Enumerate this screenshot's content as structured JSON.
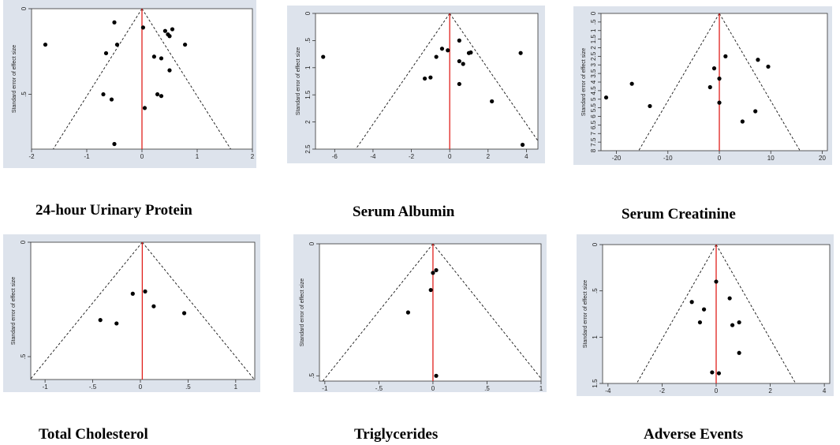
{
  "chart_data": [
    {
      "type": "scatter",
      "caption": "24-hour Urinary Protein",
      "ylabel": "Standard error of effect size",
      "xlim": [
        -2,
        2
      ],
      "ylim": [
        0,
        0.82
      ],
      "xticks": [
        -2,
        -1,
        0,
        1,
        2
      ],
      "xtick_labels": [
        "-2",
        "-1",
        "0",
        "1",
        "2"
      ],
      "yticks": [
        0,
        0.5
      ],
      "ytick_labels": [
        "0",
        ".5"
      ],
      "pooled": 0,
      "funnel_z": 1.96,
      "points": [
        {
          "x": -1.75,
          "y": 0.21
        },
        {
          "x": -0.5,
          "y": 0.08
        },
        {
          "x": -0.65,
          "y": 0.26
        },
        {
          "x": -0.45,
          "y": 0.21
        },
        {
          "x": -0.7,
          "y": 0.5
        },
        {
          "x": -0.55,
          "y": 0.53
        },
        {
          "x": -0.5,
          "y": 0.79
        },
        {
          "x": 0.02,
          "y": 0.11
        },
        {
          "x": 0.22,
          "y": 0.28
        },
        {
          "x": 0.35,
          "y": 0.29
        },
        {
          "x": 0.42,
          "y": 0.13
        },
        {
          "x": 0.47,
          "y": 0.15
        },
        {
          "x": 0.5,
          "y": 0.16
        },
        {
          "x": 0.55,
          "y": 0.12
        },
        {
          "x": 0.5,
          "y": 0.36
        },
        {
          "x": 0.78,
          "y": 0.21
        },
        {
          "x": 0.28,
          "y": 0.5
        },
        {
          "x": 0.35,
          "y": 0.51
        },
        {
          "x": 0.05,
          "y": 0.58
        }
      ]
    },
    {
      "type": "scatter",
      "caption": "Serum Albumin",
      "ylabel": "Standard error of effect size",
      "xlim": [
        -7,
        4.6
      ],
      "ylim": [
        0,
        2.5
      ],
      "xticks": [
        -6,
        -4,
        -2,
        0,
        2,
        4
      ],
      "xtick_labels": [
        "-6",
        "-4",
        "-2",
        "0",
        "2",
        "4"
      ],
      "yticks": [
        0,
        0.5,
        1,
        1.5,
        2,
        2.5
      ],
      "ytick_labels": [
        "0",
        ".5",
        "1",
        "1.5",
        "2",
        "2.5"
      ],
      "pooled": 0,
      "funnel_z": 1.96,
      "points": [
        {
          "x": -6.6,
          "y": 0.8
        },
        {
          "x": -1.3,
          "y": 1.2
        },
        {
          "x": -1.0,
          "y": 1.18
        },
        {
          "x": -0.7,
          "y": 0.8
        },
        {
          "x": -0.4,
          "y": 0.65
        },
        {
          "x": -0.1,
          "y": 0.68
        },
        {
          "x": 0.5,
          "y": 0.5
        },
        {
          "x": 0.5,
          "y": 0.88
        },
        {
          "x": 0.7,
          "y": 0.93
        },
        {
          "x": 1.0,
          "y": 0.73
        },
        {
          "x": 1.1,
          "y": 0.72
        },
        {
          "x": 0.5,
          "y": 1.3
        },
        {
          "x": 2.2,
          "y": 1.62
        },
        {
          "x": 3.7,
          "y": 0.73
        },
        {
          "x": 3.8,
          "y": 2.42
        }
      ]
    },
    {
      "type": "scatter",
      "caption": "Serum Creatinine",
      "ylabel": "Standard error of effect size",
      "xlim": [
        -23,
        21
      ],
      "ylim": [
        0,
        8.0
      ],
      "xticks": [
        -20,
        -10,
        0,
        10,
        20
      ],
      "xtick_labels": [
        "-20",
        "-10",
        "0",
        "10",
        "20"
      ],
      "yticks": [
        0,
        0.5,
        1,
        1.5,
        2,
        2.5,
        3,
        3.5,
        4,
        4.5,
        5,
        5.5,
        6,
        6.5,
        7,
        7.5,
        8
      ],
      "ytick_labels": [
        "0",
        ".5",
        "1",
        "1.5",
        "2",
        "2.5",
        "3",
        "3.5",
        "4",
        "4.5",
        "5",
        "5.5",
        "6",
        "6.5",
        "7",
        "7.5",
        "8"
      ],
      "pooled": 0,
      "funnel_z": 1.96,
      "points": [
        {
          "x": -22,
          "y": 4.9
        },
        {
          "x": -17,
          "y": 4.1
        },
        {
          "x": -13.5,
          "y": 5.4
        },
        {
          "x": -1.0,
          "y": 3.2
        },
        {
          "x": 1.2,
          "y": 2.5
        },
        {
          "x": 0,
          "y": 3.8
        },
        {
          "x": -1.8,
          "y": 4.3
        },
        {
          "x": 0,
          "y": 5.2
        },
        {
          "x": 7.5,
          "y": 2.7
        },
        {
          "x": 9.5,
          "y": 3.1
        },
        {
          "x": 7,
          "y": 5.7
        },
        {
          "x": 4.5,
          "y": 6.3
        }
      ]
    },
    {
      "type": "scatter",
      "caption": "Total Cholesterol",
      "ylabel": "Standard error of effect size",
      "xlim": [
        -1.15,
        1.2
      ],
      "ylim": [
        0,
        0.6
      ],
      "xticks": [
        -1,
        -0.5,
        0,
        0.5,
        1
      ],
      "xtick_labels": [
        "-1",
        "-.5",
        "0",
        ".5",
        "1"
      ],
      "yticks": [
        0,
        0.5
      ],
      "ytick_labels": [
        "0",
        ".5"
      ],
      "pooled": 0.02,
      "funnel_z": 1.96,
      "points": [
        {
          "x": -0.08,
          "y": 0.225
        },
        {
          "x": 0.05,
          "y": 0.215
        },
        {
          "x": 0.14,
          "y": 0.28
        },
        {
          "x": -0.42,
          "y": 0.34
        },
        {
          "x": -0.25,
          "y": 0.355
        },
        {
          "x": 0.46,
          "y": 0.31
        }
      ]
    },
    {
      "type": "scatter",
      "caption": "Triglycerides",
      "ylabel": "Standard error of effect size",
      "xlim": [
        -1.05,
        1.0
      ],
      "ylim": [
        0,
        0.52
      ],
      "xticks": [
        -1,
        -0.5,
        0,
        0.5,
        1
      ],
      "xtick_labels": [
        "-1",
        "-.5",
        "0",
        ".5",
        "1"
      ],
      "yticks": [
        0,
        0.5
      ],
      "ytick_labels": [
        "0",
        ".5"
      ],
      "pooled": 0,
      "funnel_z": 1.96,
      "points": [
        {
          "x": 0.0,
          "y": 0.11
        },
        {
          "x": 0.03,
          "y": 0.1
        },
        {
          "x": -0.02,
          "y": 0.175
        },
        {
          "x": -0.23,
          "y": 0.26
        },
        {
          "x": 0.03,
          "y": 0.5
        }
      ]
    },
    {
      "type": "scatter",
      "caption": "Adverse Events",
      "ylabel": "Standard error of effect size",
      "xlim": [
        -4.2,
        4.2
      ],
      "ylim": [
        0,
        1.5
      ],
      "xticks": [
        -4,
        -2,
        0,
        2,
        4
      ],
      "xtick_labels": [
        "-4",
        "-2",
        "0",
        "2",
        "4"
      ],
      "yticks": [
        0,
        0.5,
        1,
        1.5
      ],
      "ytick_labels": [
        "0",
        ".5",
        "1",
        "1.5"
      ],
      "pooled": 0,
      "funnel_z": 1.96,
      "points": [
        {
          "x": 0,
          "y": 0.4
        },
        {
          "x": 0.5,
          "y": 0.58
        },
        {
          "x": -0.9,
          "y": 0.62
        },
        {
          "x": -0.45,
          "y": 0.7
        },
        {
          "x": -0.6,
          "y": 0.84
        },
        {
          "x": 0.6,
          "y": 0.87
        },
        {
          "x": 0.85,
          "y": 0.84
        },
        {
          "x": 0.85,
          "y": 1.17
        },
        {
          "x": -0.15,
          "y": 1.38
        },
        {
          "x": 0.1,
          "y": 1.39
        }
      ]
    }
  ]
}
